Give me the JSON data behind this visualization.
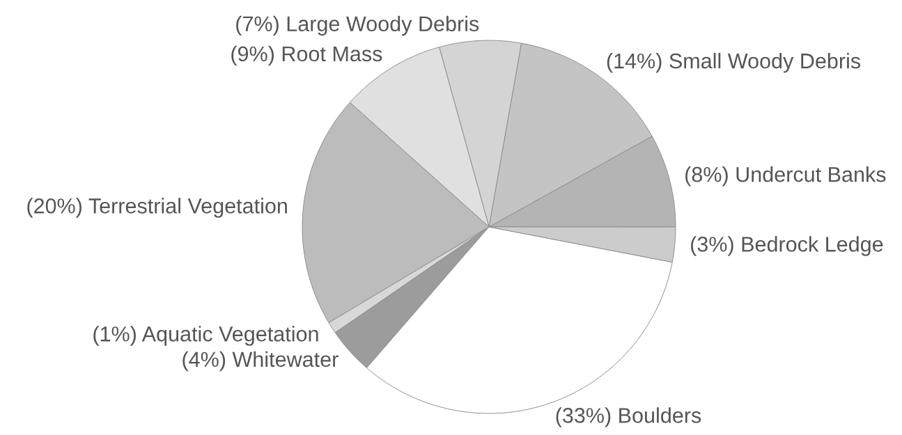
{
  "chart_data": {
    "type": "pie",
    "categories": [
      "Undercut Banks",
      "Small Woody Debris",
      "Large Woody Debris",
      "Root Mass",
      "Terrestrial Vegetation",
      "Aquatic Vegetation",
      "Whitewater",
      "Boulders",
      "Bedrock Ledge"
    ],
    "values": [
      8,
      14,
      7,
      9,
      20,
      1,
      4,
      33,
      3
    ],
    "value_labels": [
      "(8%)",
      "(14%)",
      "(7%)",
      "(9%)",
      "(20%)",
      "(1%)",
      "(4%)",
      "(33%)",
      "(3%)"
    ],
    "colors": [
      "#b4b4b4",
      "#c4c4c4",
      "#d4d4d4",
      "#e0e0e0",
      "#bcbcbc",
      "#d8d8d8",
      "#9c9c9c",
      "#ffffff",
      "#cccccc"
    ]
  }
}
